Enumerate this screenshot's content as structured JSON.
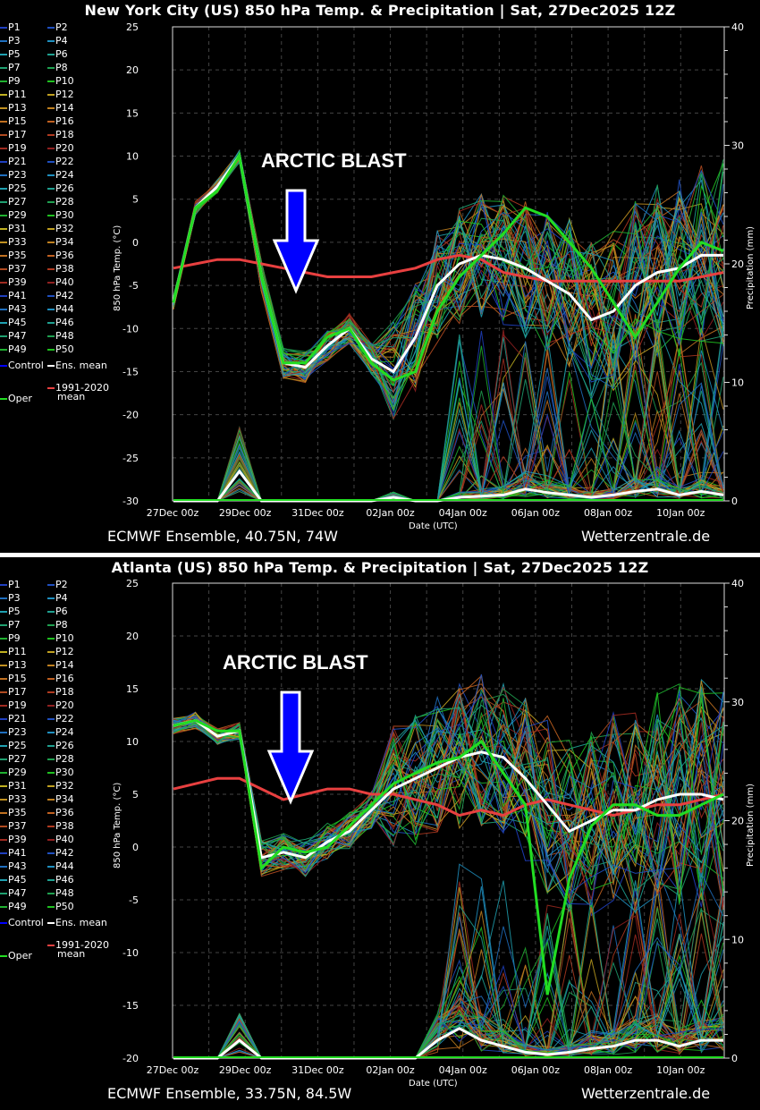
{
  "legend": {
    "members": [
      "P1",
      "P2",
      "P3",
      "P4",
      "P5",
      "P6",
      "P7",
      "P8",
      "P9",
      "P10",
      "P11",
      "P12",
      "P13",
      "P14",
      "P15",
      "P16",
      "P17",
      "P18",
      "P19",
      "P20",
      "P21",
      "P22",
      "P23",
      "P24",
      "P25",
      "P26",
      "P27",
      "P28",
      "P29",
      "P30",
      "P31",
      "P32",
      "P33",
      "P34",
      "P35",
      "P36",
      "P37",
      "P38",
      "P39",
      "P40",
      "P41",
      "P42",
      "P43",
      "P44",
      "P45",
      "P46",
      "P47",
      "P48",
      "P49",
      "P50"
    ],
    "member_colors": [
      "#1f3fbf",
      "#1f4fbf",
      "#1f6fbf",
      "#1f8fbf",
      "#1fa0b0",
      "#1fa090",
      "#1fa070",
      "#1fa050",
      "#1fb030",
      "#1fc020",
      "#bfb020",
      "#c0a020",
      "#c09020",
      "#c08020",
      "#c07020",
      "#c06020",
      "#b04a20",
      "#b03a20",
      "#a02a20",
      "#902020",
      "#1f3fbf",
      "#1f4fbf",
      "#1f6fbf",
      "#1f8fbf",
      "#1fa0b0",
      "#1fa090",
      "#1fa070",
      "#1fa050",
      "#1fb030",
      "#1fc020",
      "#bfb020",
      "#c0a020",
      "#c09020",
      "#c08020",
      "#c07020",
      "#c06020",
      "#b04a20",
      "#b03a20",
      "#a02a20",
      "#902020",
      "#1f3fbf",
      "#1f4fbf",
      "#1f6fbf",
      "#1f8fbf",
      "#1fa0b0",
      "#1fa090",
      "#1fa070",
      "#1fa050",
      "#1fb030",
      "#1fc020"
    ],
    "control_label": "Control",
    "control_color": "#0000ff",
    "ens_mean_label": "Ens. mean",
    "ens_mean_color": "#ffffff",
    "climo_label_1": "1991-2020",
    "climo_label_2": "mean",
    "climo_color": "#e84040",
    "oper_label": "Oper",
    "oper_color": "#22dd22"
  },
  "panels": [
    {
      "title": "New York City  (US)  850 hPa Temp. & Precipitation | Sat, 27Dec2025 12Z",
      "ylabel_left": "850 hPa Temp. (°C)",
      "ylabel_right": "Precipitation (mm)",
      "xlabel": "Date (UTC)",
      "footer_left": "ECMWF Ensemble, 40.75N, 74W",
      "footer_right": "Wetterzentrale.de",
      "annotation": "ARCTIC BLAST",
      "left_ticks": [
        "25",
        "20",
        "15",
        "10",
        "5",
        "0",
        "-5",
        "-10",
        "-15",
        "-20",
        "-25",
        "-30"
      ],
      "right_ticks": [
        "40",
        "30",
        "20",
        "10",
        "0"
      ],
      "x_ticks": [
        "27Dec 00z",
        "29Dec 00z",
        "31Dec 00z",
        "02Jan 00z",
        "04Jan 00z",
        "06Jan 00z",
        "08Jan 00z",
        "10Jan 00z"
      ]
    },
    {
      "title": "Atlanta  (US)  850 hPa Temp. & Precipitation | Sat, 27Dec2025 12Z",
      "ylabel_left": "850 hPa Temp. (°C)",
      "ylabel_right": "Precipitation (mm)",
      "xlabel": "Date (UTC)",
      "footer_left": "ECMWF Ensemble, 33.75N, 84.5W",
      "footer_right": "Wetterzentrale.de",
      "annotation": "ARCTIC BLAST",
      "left_ticks": [
        "25",
        "20",
        "15",
        "10",
        "5",
        "0",
        "-5",
        "-10",
        "-15",
        "-20"
      ],
      "right_ticks": [
        "40",
        "30",
        "20",
        "10",
        "0"
      ],
      "x_ticks": [
        "27Dec 00z",
        "29Dec 00z",
        "31Dec 00z",
        "02Jan 00z",
        "04Jan 00z",
        "06Jan 00z",
        "08Jan 00z",
        "10Jan 00z"
      ]
    }
  ],
  "chart_data": [
    {
      "type": "line",
      "title": "New York City  (US)  850 hPa Temp. & Precipitation | Sat, 27Dec2025 12Z",
      "xlabel": "Date (UTC)",
      "ylabel": "850 hPa Temp. (°C)",
      "ylabel_right": "Precipitation (mm)",
      "ylim": [
        -30,
        25
      ],
      "ylim_right": [
        0,
        40
      ],
      "grid": true,
      "legend_position": "left",
      "x_start": "27Dec 12z",
      "x_step_hours": 12,
      "x_ticks": [
        "27Dec 00z",
        "29Dec 00z",
        "31Dec 00z",
        "02Jan 00z",
        "04Jan 00z",
        "06Jan 00z",
        "08Jan 00z",
        "10Jan 00z"
      ],
      "annotations": [
        "ARCTIC BLAST (downward blue arrow at ~31Dec)"
      ],
      "series": [
        {
          "name": "Ens. mean",
          "color": "#ffffff",
          "values": [
            -7,
            4,
            6.5,
            10,
            -4,
            -14,
            -14.5,
            -12,
            -10,
            -13.5,
            -15,
            -11,
            -5,
            -2.5,
            -1.5,
            -2,
            -3,
            -4.5,
            -6,
            -9,
            -8,
            -5,
            -3.5,
            -3,
            -1.5,
            -1.5
          ]
        },
        {
          "name": "Oper",
          "color": "#22dd22",
          "values": [
            -7,
            4,
            6,
            10,
            -4,
            -14,
            -14,
            -11,
            -10,
            -14,
            -16,
            -15,
            -8,
            -4,
            -1.5,
            1,
            4,
            3,
            0,
            -3,
            -7,
            -11,
            -7,
            -3,
            0,
            -1
          ]
        },
        {
          "name": "1991-2020 mean",
          "color": "#e84040",
          "values": [
            -3,
            -2.5,
            -2,
            -2,
            -2.5,
            -3,
            -3.5,
            -4,
            -4,
            -4,
            -3.5,
            -3,
            -2,
            -1.5,
            -2,
            -3.5,
            -4,
            -4.5,
            -4.5,
            -4.5,
            -4.5,
            -4.5,
            -4.5,
            -4.5,
            -4,
            -3.5
          ]
        },
        {
          "name": "Ens. mean precip (mm)",
          "color": "#ffffff",
          "axis": "right",
          "values": [
            0,
            0,
            0,
            2.5,
            0,
            0,
            0,
            0,
            0,
            0,
            0.3,
            0,
            0,
            0.3,
            0.4,
            0.5,
            1,
            0.7,
            0.5,
            0.3,
            0.5,
            0.8,
            1,
            0.5,
            0.8,
            0.5
          ]
        }
      ]
    },
    {
      "type": "line",
      "title": "Atlanta  (US)  850 hPa Temp. & Precipitation | Sat, 27Dec2025 12Z",
      "xlabel": "Date (UTC)",
      "ylabel": "850 hPa Temp. (°C)",
      "ylabel_right": "Precipitation (mm)",
      "ylim": [
        -20,
        25
      ],
      "ylim_right": [
        0,
        40
      ],
      "grid": true,
      "legend_position": "left",
      "x_start": "27Dec 12z",
      "x_step_hours": 12,
      "x_ticks": [
        "27Dec 00z",
        "29Dec 00z",
        "31Dec 00z",
        "02Jan 00z",
        "04Jan 00z",
        "06Jan 00z",
        "08Jan 00z",
        "10Jan 00z"
      ],
      "annotations": [
        "ARCTIC BLAST (downward blue arrow at ~31Dec)"
      ],
      "series": [
        {
          "name": "Ens. mean",
          "color": "#ffffff",
          "values": [
            11.5,
            12,
            10.5,
            11,
            -1,
            -0.5,
            -1,
            0.5,
            1.5,
            3.5,
            5.5,
            6.5,
            7.5,
            8.5,
            9,
            8.5,
            6.5,
            4,
            1.5,
            2.5,
            3.5,
            3.5,
            4.5,
            5,
            5,
            4.5
          ]
        },
        {
          "name": "Oper",
          "color": "#22dd22",
          "values": [
            11.5,
            12,
            11,
            11,
            -2,
            0,
            -0.5,
            0,
            2,
            4,
            6,
            7,
            8,
            8.5,
            10,
            7,
            4,
            -14,
            -3,
            2,
            4,
            4,
            3,
            3,
            4,
            5
          ]
        },
        {
          "name": "1991-2020 mean",
          "color": "#e84040",
          "values": [
            5.5,
            6,
            6.5,
            6.5,
            5.5,
            4.5,
            5,
            5.5,
            5.5,
            5,
            5,
            4.5,
            4,
            3,
            3.5,
            3,
            4,
            4.5,
            4,
            3.5,
            3,
            3.5,
            4,
            4,
            4.5,
            5
          ]
        },
        {
          "name": "Ens. mean precip (mm)",
          "color": "#ffffff",
          "axis": "right",
          "values": [
            0,
            0,
            0,
            1.5,
            0,
            0,
            0,
            0,
            0,
            0,
            0,
            0,
            1.5,
            2.5,
            1.5,
            1,
            0.5,
            0.3,
            0.5,
            0.8,
            1,
            1.5,
            1.5,
            1,
            1.5,
            1.5
          ]
        }
      ]
    }
  ]
}
